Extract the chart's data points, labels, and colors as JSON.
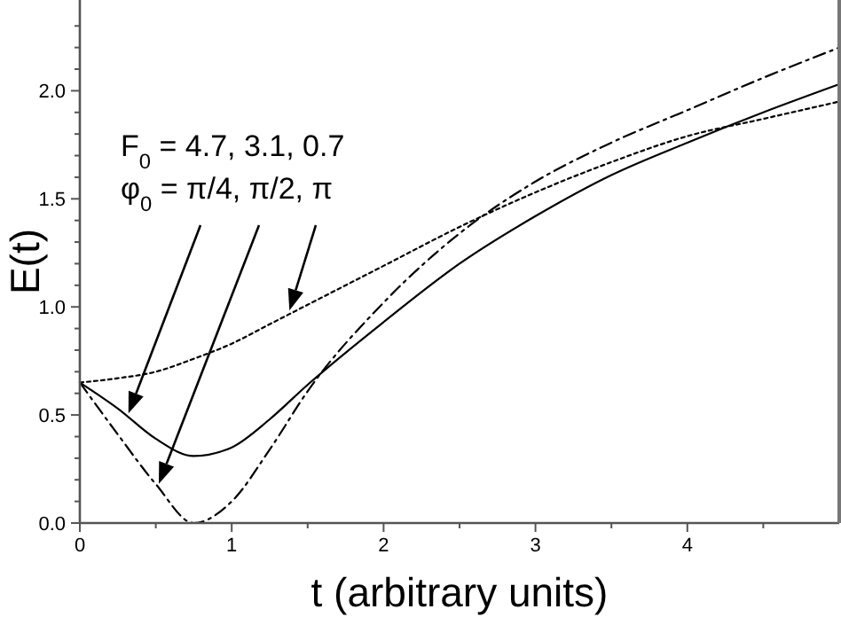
{
  "chart_data": {
    "type": "line",
    "xlabel": "t (arbitrary units)",
    "ylabel": "E(t)",
    "x": [
      0,
      0.25,
      0.5,
      0.75,
      1,
      1.25,
      1.5,
      2,
      2.5,
      3,
      3.5,
      4,
      4.5,
      5
    ],
    "series": [
      {
        "color": "#000000",
        "line_style": "solid",
        "values": [
          0.65,
          0.53,
          0.39,
          0.31,
          0.35,
          0.48,
          0.64,
          0.93,
          1.2,
          1.42,
          1.61,
          1.76,
          1.9,
          2.03
        ]
      },
      {
        "color": "#000000",
        "line_style": "dashed",
        "values": [
          0.65,
          0.41,
          0.18,
          0.0,
          0.1,
          0.34,
          0.61,
          1.02,
          1.34,
          1.58,
          1.76,
          1.91,
          2.06,
          2.2
        ]
      },
      {
        "color": "#000000",
        "line_style": "dotted",
        "values": [
          0.65,
          0.67,
          0.7,
          0.76,
          0.83,
          0.92,
          1.01,
          1.19,
          1.37,
          1.53,
          1.67,
          1.79,
          1.87,
          1.95
        ]
      }
    ],
    "xlim": [
      0,
      5
    ],
    "ylim": [
      0,
      2.42
    ],
    "xticks": [
      0,
      {
        "value": 0.5,
        "label": null
      },
      1,
      {
        "value": 1.5,
        "label": null
      },
      2,
      {
        "value": 2.5,
        "label": null
      },
      3,
      {
        "value": 3.5,
        "label": null
      },
      4,
      {
        "value": 4.5,
        "label": null
      }
    ],
    "yticks": [
      {
        "value": 0,
        "label": "0.0"
      },
      {
        "value": 0.1,
        "label": null
      },
      {
        "value": 0.2,
        "label": null
      },
      {
        "value": 0.3,
        "label": null
      },
      {
        "value": 0.4,
        "label": null
      },
      0.5,
      {
        "value": 0.6,
        "label": null
      },
      {
        "value": 0.7,
        "label": null
      },
      {
        "value": 0.8,
        "label": null
      },
      {
        "value": 0.9,
        "label": null
      },
      {
        "value": 1,
        "label": "1.0"
      },
      {
        "value": 1.1,
        "label": null
      },
      {
        "value": 1.2,
        "label": null
      },
      {
        "value": 1.3,
        "label": null
      },
      {
        "value": 1.4,
        "label": null
      },
      1.5,
      {
        "value": 1.6,
        "label": null
      },
      {
        "value": 1.7,
        "label": null
      },
      {
        "value": 1.8,
        "label": null
      },
      {
        "value": 1.9,
        "label": null
      },
      {
        "value": 2,
        "label": "2.0"
      },
      {
        "value": 2.1,
        "label": null
      },
      {
        "value": 2.2,
        "label": null
      },
      {
        "value": 2.3,
        "label": null
      }
    ],
    "annotations": [
      "F$_{0}$ = 4.7, 3.1, 0.7",
      "φ$_{0}$ = π/4, π/2, π"
    ],
    "grid": false,
    "marker": "none"
  }
}
